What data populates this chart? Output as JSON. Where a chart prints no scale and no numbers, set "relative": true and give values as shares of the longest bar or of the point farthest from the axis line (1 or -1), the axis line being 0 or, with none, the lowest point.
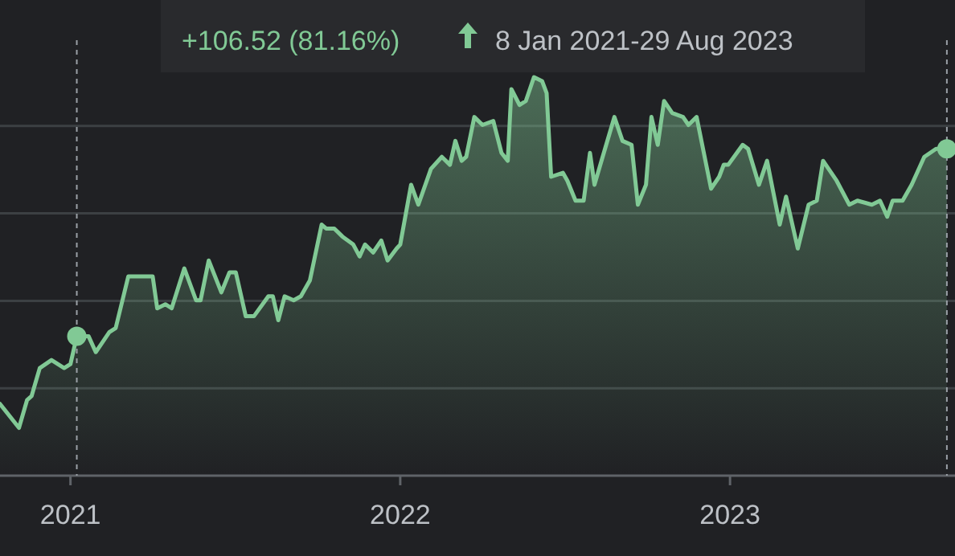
{
  "chart_data": {
    "type": "area",
    "relative": true,
    "annotations": [
      "+106.52 (81.16%)",
      "8 Jan 2021-29 Aug 2023"
    ],
    "xlim": [
      "2020-10-15",
      "2023-09-07"
    ],
    "xticks": [
      "2021",
      "2022",
      "2023"
    ],
    "grid": "y",
    "ref_lines": [
      {
        "axis": "x",
        "value": "2021-01-08",
        "line_style": "dotted"
      },
      {
        "axis": "x",
        "value": "2023-08-29",
        "line_style": "dotted"
      }
    ],
    "series": [
      {
        "color": "#81c995",
        "x": [
          "2020-10-15",
          "2020-11-05",
          "2020-11-14",
          "2020-11-19",
          "2020-11-28",
          "2020-12-11",
          "2020-12-25",
          "2021-01-01",
          "2021-01-06",
          "2021-01-08",
          "2021-01-21",
          "2021-01-29",
          "2021-02-04",
          "2021-02-13",
          "2021-02-20",
          "2021-03-06",
          "2021-03-15",
          "2021-03-20",
          "2021-04-02",
          "2021-04-07",
          "2021-04-16",
          "2021-04-23",
          "2021-05-07",
          "2021-05-20",
          "2021-05-25",
          "2021-06-03",
          "2021-06-17",
          "2021-06-26",
          "2021-07-03",
          "2021-07-14",
          "2021-07-23",
          "2021-08-08",
          "2021-08-13",
          "2021-08-19",
          "2021-08-26",
          "2021-09-05",
          "2021-09-13",
          "2021-09-23",
          "2021-10-06",
          "2021-10-11",
          "2021-10-20",
          "2021-10-29",
          "2021-11-10",
          "2021-11-17",
          "2021-11-23",
          "2021-12-02",
          "2021-12-11",
          "2021-12-18",
          "2021-12-28",
          "2022-01-01",
          "2022-01-13",
          "2022-01-21",
          "2022-02-04",
          "2022-02-16",
          "2022-02-25",
          "2022-03-03",
          "2022-03-10",
          "2022-03-15",
          "2022-03-24",
          "2022-04-02",
          "2022-04-14",
          "2022-04-23",
          "2022-04-30",
          "2022-05-04",
          "2022-05-13",
          "2022-05-20",
          "2022-05-29",
          "2022-06-07",
          "2022-06-12",
          "2022-06-17",
          "2022-06-30",
          "2022-07-05",
          "2022-07-14",
          "2022-07-23",
          "2022-07-30",
          "2022-08-04",
          "2022-08-13",
          "2022-08-26",
          "2022-09-04",
          "2022-09-14",
          "2022-09-21",
          "2022-09-30",
          "2022-10-06",
          "2022-10-13",
          "2022-10-20",
          "2022-10-29",
          "2022-11-10",
          "2022-11-16",
          "2022-11-25",
          "2022-12-11",
          "2022-12-20",
          "2022-12-25",
          "2022-12-30",
          "2023-01-15",
          "2023-01-21",
          "2023-02-02",
          "2023-02-11",
          "2023-02-25",
          "2023-03-04",
          "2023-03-17",
          "2023-03-29",
          "2023-04-07",
          "2023-04-14",
          "2023-04-29",
          "2023-05-13",
          "2023-05-22",
          "2023-06-07",
          "2023-06-16",
          "2023-06-24",
          "2023-06-30",
          "2023-07-11",
          "2023-07-21",
          "2023-08-04",
          "2023-08-17",
          "2023-08-29"
        ],
        "values": [
          0.18,
          0.12,
          0.19,
          0.2,
          0.27,
          0.29,
          0.27,
          0.28,
          0.33,
          0.35,
          0.35,
          0.31,
          0.33,
          0.36,
          0.37,
          0.5,
          0.5,
          0.5,
          0.5,
          0.42,
          0.43,
          0.42,
          0.52,
          0.44,
          0.44,
          0.54,
          0.46,
          0.51,
          0.51,
          0.4,
          0.4,
          0.45,
          0.45,
          0.39,
          0.45,
          0.44,
          0.45,
          0.49,
          0.63,
          0.62,
          0.62,
          0.6,
          0.58,
          0.55,
          0.58,
          0.56,
          0.59,
          0.54,
          0.57,
          0.58,
          0.73,
          0.68,
          0.77,
          0.8,
          0.78,
          0.84,
          0.79,
          0.8,
          0.9,
          0.88,
          0.89,
          0.81,
          0.79,
          0.97,
          0.93,
          0.94,
          1.0,
          0.99,
          0.96,
          0.75,
          0.76,
          0.74,
          0.69,
          0.69,
          0.81,
          0.73,
          0.8,
          0.9,
          0.84,
          0.83,
          0.68,
          0.73,
          0.9,
          0.83,
          0.94,
          0.91,
          0.9,
          0.88,
          0.9,
          0.72,
          0.75,
          0.78,
          0.78,
          0.83,
          0.82,
          0.73,
          0.79,
          0.63,
          0.7,
          0.57,
          0.68,
          0.69,
          0.79,
          0.74,
          0.68,
          0.69,
          0.68,
          0.69,
          0.65,
          0.69,
          0.69,
          0.73,
          0.8,
          0.82,
          0.82
        ]
      }
    ]
  }
}
